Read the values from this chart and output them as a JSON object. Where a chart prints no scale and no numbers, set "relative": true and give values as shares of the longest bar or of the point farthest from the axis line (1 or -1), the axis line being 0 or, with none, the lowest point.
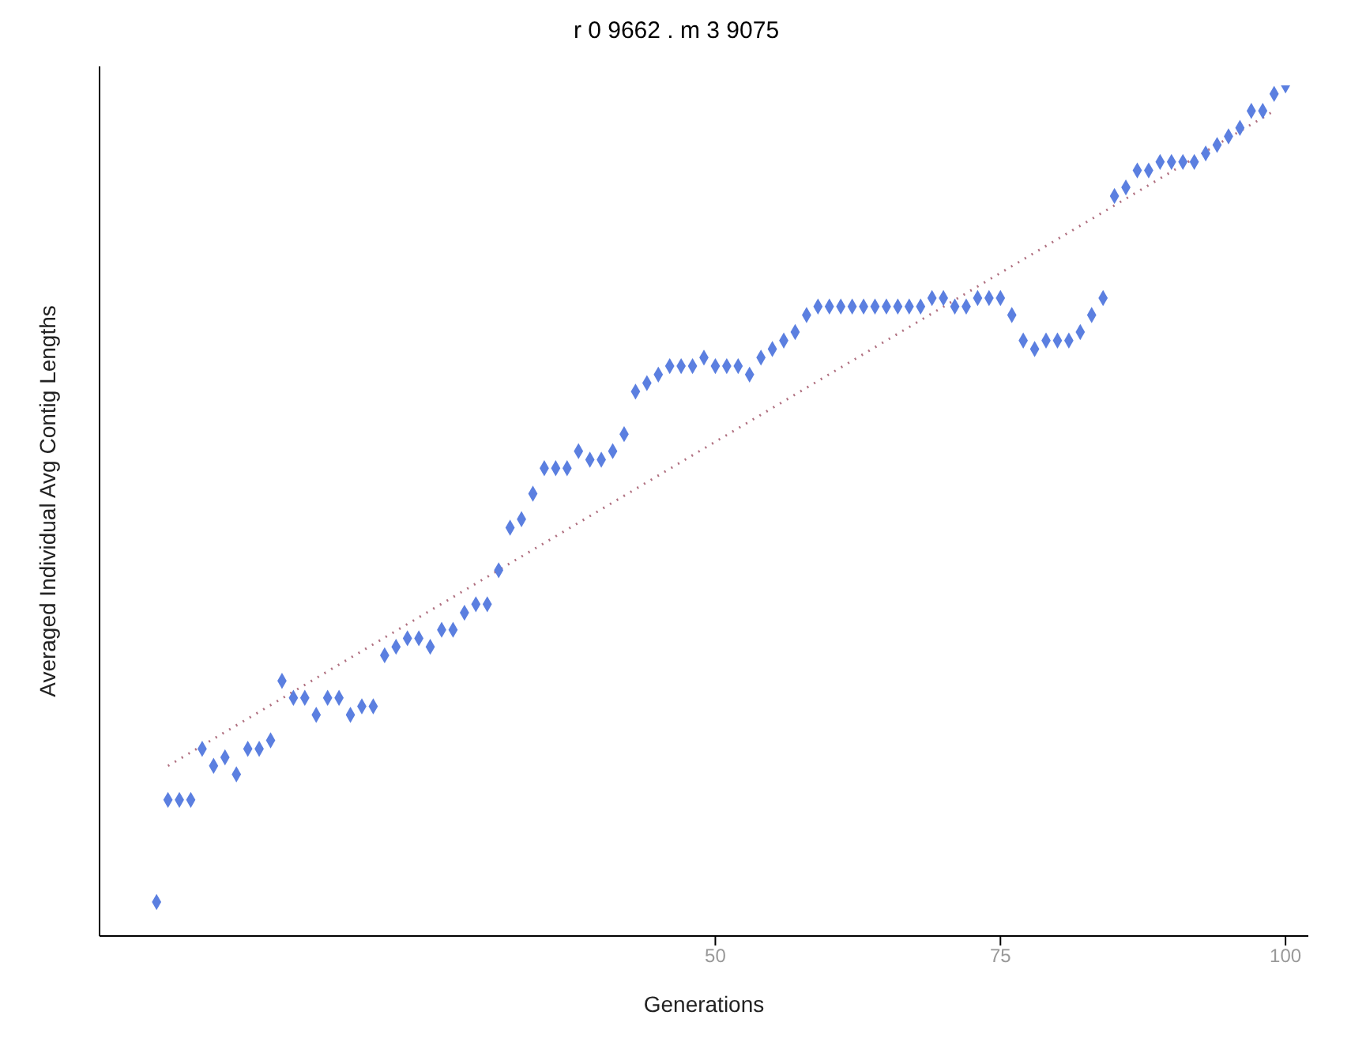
{
  "chart_data": {
    "type": "scatter",
    "title": "r  0 9662 . m  3 9075",
    "xlabel": "Generations",
    "ylabel": "Averaged Individual Avg  Contig Lengths",
    "relative": true,
    "xlim": [
      -4,
      102
    ],
    "xticks": [
      50,
      75,
      100
    ],
    "series": [
      {
        "marker": "diamond",
        "color": "#5b7fe0",
        "x": [
          1,
          2,
          3,
          4,
          5,
          6,
          7,
          8,
          9,
          10,
          11,
          12,
          13,
          14,
          15,
          16,
          17,
          18,
          19,
          20,
          21,
          22,
          23,
          24,
          25,
          26,
          27,
          28,
          29,
          30,
          31,
          32,
          33,
          34,
          35,
          36,
          37,
          38,
          39,
          40,
          41,
          42,
          43,
          44,
          45,
          46,
          47,
          48,
          49,
          50,
          51,
          52,
          53,
          54,
          55,
          56,
          57,
          58,
          59,
          60,
          61,
          62,
          63,
          64,
          65,
          66,
          67,
          68,
          69,
          70,
          71,
          72,
          73,
          74,
          75,
          76,
          77,
          78,
          79,
          80,
          81,
          82,
          83,
          84,
          85,
          86,
          87,
          88,
          89,
          90,
          91,
          92,
          93,
          94,
          95,
          96,
          97,
          98,
          99,
          100
        ],
        "values": [
          0.04,
          0.16,
          0.16,
          0.16,
          0.22,
          0.2,
          0.21,
          0.19,
          0.22,
          0.22,
          0.23,
          0.3,
          0.28,
          0.28,
          0.26,
          0.28,
          0.28,
          0.26,
          0.27,
          0.27,
          0.33,
          0.34,
          0.35,
          0.35,
          0.34,
          0.36,
          0.36,
          0.38,
          0.39,
          0.39,
          0.43,
          0.48,
          0.49,
          0.52,
          0.55,
          0.55,
          0.55,
          0.57,
          0.56,
          0.56,
          0.57,
          0.59,
          0.64,
          0.65,
          0.66,
          0.67,
          0.67,
          0.67,
          0.68,
          0.67,
          0.67,
          0.67,
          0.66,
          0.68,
          0.69,
          0.7,
          0.71,
          0.73,
          0.74,
          0.74,
          0.74,
          0.74,
          0.74,
          0.74,
          0.74,
          0.74,
          0.74,
          0.74,
          0.75,
          0.75,
          0.74,
          0.74,
          0.75,
          0.75,
          0.75,
          0.73,
          0.7,
          0.69,
          0.7,
          0.7,
          0.7,
          0.71,
          0.73,
          0.75,
          0.87,
          0.88,
          0.9,
          0.9,
          0.91,
          0.91,
          0.91,
          0.91,
          0.92,
          0.93,
          0.94,
          0.95,
          0.97,
          0.97,
          0.99,
          1
        ]
      },
      {
        "type": "line",
        "color": "#b07080",
        "line_style": "dotted",
        "x": [
          2,
          99
        ],
        "values": [
          0.2,
          0.97
        ]
      }
    ]
  }
}
